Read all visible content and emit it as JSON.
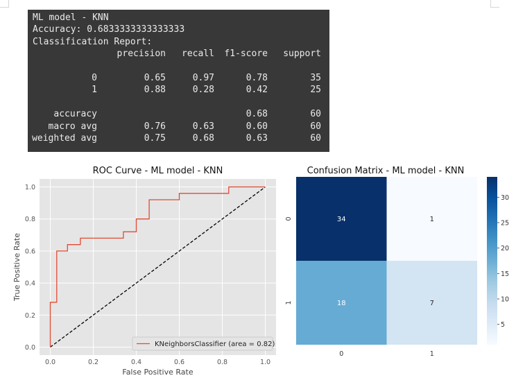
{
  "report": {
    "title_line": "ML model - KNN",
    "accuracy_line": "Accuracy: 0.6833333333333333",
    "report_heading": "Classification Report:",
    "columns": [
      "precision",
      "recall",
      "f1-score",
      "support"
    ],
    "rows": [
      {
        "label": "0",
        "precision": "0.65",
        "recall": "0.97",
        "f1": "0.78",
        "support": "35"
      },
      {
        "label": "1",
        "precision": "0.88",
        "recall": "0.28",
        "f1": "0.42",
        "support": "25"
      }
    ],
    "summary": [
      {
        "label": "accuracy",
        "precision": "",
        "recall": "",
        "f1": "0.68",
        "support": "60"
      },
      {
        "label": "macro avg",
        "precision": "0.76",
        "recall": "0.63",
        "f1": "0.60",
        "support": "60"
      },
      {
        "label": "weighted avg",
        "precision": "0.75",
        "recall": "0.68",
        "f1": "0.63",
        "support": "60"
      }
    ]
  },
  "chart_data": [
    {
      "type": "line",
      "title": "ROC Curve - ML model - KNN",
      "xlabel": "False Positive Rate",
      "ylabel": "True Positive Rate",
      "xlim": [
        -0.05,
        1.05
      ],
      "ylim": [
        -0.05,
        1.05
      ],
      "xticks": [
        "0.0",
        "0.2",
        "0.4",
        "0.6",
        "0.8",
        "1.0"
      ],
      "yticks": [
        "0.0",
        "0.2",
        "0.4",
        "0.6",
        "0.8",
        "1.0"
      ],
      "grid": true,
      "style": "ggplot",
      "series": [
        {
          "name": "KNeighborsClassifier (area = 0.82)",
          "color": "#e24a33",
          "x": [
            0.0,
            0.0,
            0.03,
            0.03,
            0.03,
            0.08,
            0.08,
            0.14,
            0.14,
            0.34,
            0.34,
            0.4,
            0.4,
            0.46,
            0.46,
            0.6,
            0.6,
            0.83,
            0.83,
            1.0
          ],
          "y": [
            0.0,
            0.28,
            0.28,
            0.6,
            0.6,
            0.6,
            0.64,
            0.64,
            0.68,
            0.68,
            0.72,
            0.72,
            0.8,
            0.8,
            0.92,
            0.92,
            0.96,
            0.96,
            1.0,
            1.0
          ]
        }
      ],
      "reference_line": {
        "x": [
          0,
          1
        ],
        "y": [
          0,
          1
        ],
        "color": "#000000",
        "style": "dashed"
      },
      "legend_position": "lower-right"
    },
    {
      "type": "heatmap",
      "title": "Confusion Matrix - ML model - KNN",
      "x_categories": [
        "0",
        "1"
      ],
      "y_categories": [
        "0",
        "1"
      ],
      "values": [
        [
          34,
          1
        ],
        [
          18,
          7
        ]
      ],
      "colormap": "Blues",
      "vmin": 1,
      "vmax": 34,
      "colorbar_ticks": [
        "5",
        "10",
        "15",
        "20",
        "25",
        "30"
      ]
    }
  ]
}
